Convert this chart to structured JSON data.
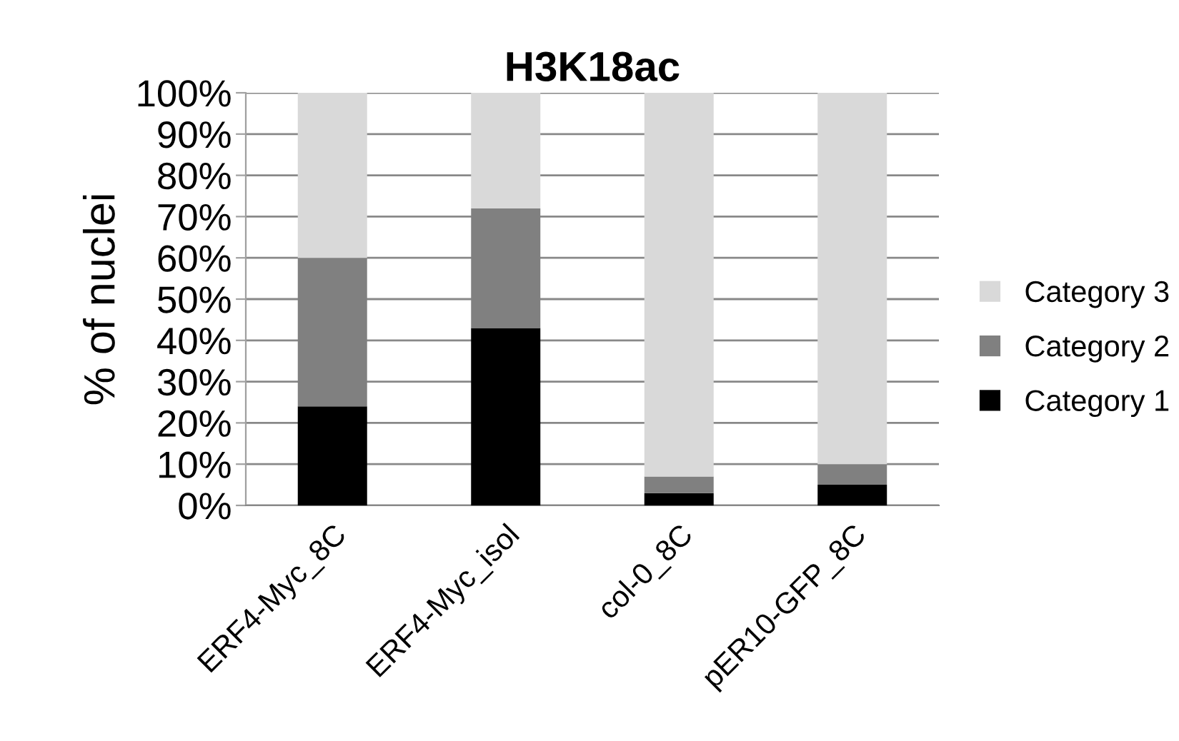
{
  "chart_data": {
    "type": "bar",
    "stacked": true,
    "title": "H3K18ac",
    "ylabel": "% of nuclei",
    "categories": [
      "ERF4-Myc_8C",
      "ERF4-Myc_isol",
      "col-0_8C",
      "pER10-GFP_8C"
    ],
    "series": [
      {
        "name": "Category 1",
        "color": "#000000",
        "values": [
          24,
          43,
          3,
          5
        ]
      },
      {
        "name": "Category 2",
        "color": "#808080",
        "values": [
          36,
          29,
          4,
          5
        ]
      },
      {
        "name": "Category 3",
        "color": "#d9d9d9",
        "values": [
          40,
          28,
          93,
          90
        ]
      }
    ],
    "ylim": [
      0,
      100
    ],
    "yticks": [
      {
        "value": 0,
        "label": "0%"
      },
      {
        "value": 10,
        "label": "10%"
      },
      {
        "value": 20,
        "label": "20%"
      },
      {
        "value": 30,
        "label": "30%"
      },
      {
        "value": 40,
        "label": "40%"
      },
      {
        "value": 50,
        "label": "50%"
      },
      {
        "value": 60,
        "label": "60%"
      },
      {
        "value": 70,
        "label": "70%"
      },
      {
        "value": 80,
        "label": "80%"
      },
      {
        "value": 90,
        "label": "90%"
      },
      {
        "value": 100,
        "label": "100%"
      }
    ],
    "grid": "y",
    "legend": "right"
  }
}
